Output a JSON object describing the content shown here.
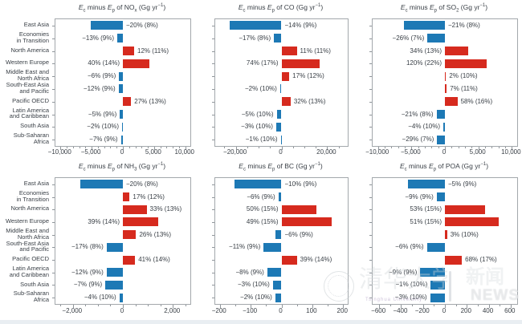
{
  "figure": {
    "title_words": {
      "e_symbol": "E",
      "ec_sub": "c",
      "minus_word": "minus",
      "ep_sub": "p",
      "of_word": "of",
      "unit_prefix": "(Gg yr",
      "unit_sup": "−1",
      "unit_suffix": ")"
    }
  },
  "colors": {
    "positive_bar": "#d62a1e",
    "negative_bar": "#1d79b5",
    "text": "#3a4047",
    "axis": "#a3a8ac",
    "tick": "#8f959a",
    "bottom_strip": "#e9eef2"
  },
  "regions": [
    {
      "name": "East Asia",
      "lines": [
        "East Asia"
      ]
    },
    {
      "name": "Economies in Transition",
      "lines": [
        "Economies",
        "in Transition"
      ]
    },
    {
      "name": "North America",
      "lines": [
        "North America"
      ]
    },
    {
      "name": "Western Europe",
      "lines": [
        "Western Europe"
      ]
    },
    {
      "name": "Middle East and North Africa",
      "lines": [
        "Middle East and",
        "North Africa"
      ]
    },
    {
      "name": "South-East Asia and Pacific",
      "lines": [
        "South-East Asia",
        "and Pacific"
      ]
    },
    {
      "name": "Pacific OECD",
      "lines": [
        "Pacific OECD"
      ]
    },
    {
      "name": "Latin America and Caribbean",
      "lines": [
        "Latin America",
        "and Caribbean"
      ]
    },
    {
      "name": "South Asia",
      "lines": [
        "South Asia"
      ]
    },
    {
      "name": "Sub-Saharan Africa",
      "lines": [
        "Sub-Saharan",
        "Africa"
      ]
    }
  ],
  "chart_data": [
    {
      "type": "bar",
      "id": "nox",
      "species": "NO",
      "species_sub": "x",
      "xlim": [
        -10800,
        10800
      ],
      "minor_step": 1000,
      "xticks": [
        {
          "v": -10000,
          "label": "−10,000"
        },
        {
          "v": -5000,
          "label": "−5,000"
        },
        {
          "v": 0,
          "label": "0"
        },
        {
          "v": 5000,
          "label": "5,000"
        },
        {
          "v": 10000,
          "label": "10,000"
        }
      ],
      "bars": [
        {
          "region": "East Asia",
          "value": -5100,
          "label": "−20% (8%)",
          "side": "after"
        },
        {
          "region": "Economies in Transition",
          "value": -900,
          "label": "−13% (9%)",
          "side": "before"
        },
        {
          "region": "North America",
          "value": 1800,
          "label": "12% (11%)",
          "side": "after"
        },
        {
          "region": "Western Europe",
          "value": 4200,
          "label": "40% (14%)",
          "side": "before"
        },
        {
          "region": "Middle East and North Africa",
          "value": -600,
          "label": "−6% (9%)",
          "side": "before"
        },
        {
          "region": "South-East Asia and Pacific",
          "value": -680,
          "label": "−12% (9%)",
          "side": "before"
        },
        {
          "region": "Pacific OECD",
          "value": 1320,
          "label": "27% (13%)",
          "side": "after"
        },
        {
          "region": "Latin America and Caribbean",
          "value": -480,
          "label": "−5% (9%)",
          "side": "before"
        },
        {
          "region": "South Asia",
          "value": -120,
          "label": "−2% (10%)",
          "side": "before"
        },
        {
          "region": "Sub-Saharan Africa",
          "value": -320,
          "label": "−7% (9%)",
          "side": "before"
        }
      ]
    },
    {
      "type": "bar",
      "id": "co",
      "species": "CO",
      "species_sub": "",
      "xlim": [
        -29000,
        29000
      ],
      "minor_step": 5000,
      "xticks": [
        {
          "v": -20000,
          "label": "−20,000"
        },
        {
          "v": 0,
          "label": "0"
        },
        {
          "v": 20000,
          "label": "20,000"
        }
      ],
      "bars": [
        {
          "region": "East Asia",
          "value": -22500,
          "label": "−14% (9%)",
          "side": "after"
        },
        {
          "region": "Economies in Transition",
          "value": -3300,
          "label": "−17% (8%)",
          "side": "before"
        },
        {
          "region": "North America",
          "value": 6700,
          "label": "11% (11%)",
          "side": "after"
        },
        {
          "region": "Western Europe",
          "value": 16700,
          "label": "74% (17%)",
          "side": "before"
        },
        {
          "region": "Middle East and North Africa",
          "value": 3400,
          "label": "17% (12%)",
          "side": "after"
        },
        {
          "region": "South-East Asia and Pacific",
          "value": -600,
          "label": "−2% (10%)",
          "side": "before"
        },
        {
          "region": "Pacific OECD",
          "value": 4000,
          "label": "32% (13%)",
          "side": "after"
        },
        {
          "region": "Latin America and Caribbean",
          "value": -2100,
          "label": "−5% (10%)",
          "side": "before"
        },
        {
          "region": "South Asia",
          "value": -2300,
          "label": "−3% (10%)",
          "side": "before"
        },
        {
          "region": "Sub-Saharan Africa",
          "value": -350,
          "label": "−1% (10%)",
          "side": "before"
        }
      ]
    },
    {
      "type": "bar",
      "id": "so2",
      "species": "SO",
      "species_sub": "2",
      "xlim": [
        -10800,
        10800
      ],
      "minor_step": 1000,
      "xticks": [
        {
          "v": -10000,
          "label": "−10,000"
        },
        {
          "v": -5000,
          "label": "−5,000"
        },
        {
          "v": 0,
          "label": "0"
        },
        {
          "v": 5000,
          "label": "5,000"
        },
        {
          "v": 10000,
          "label": "10,000"
        }
      ],
      "bars": [
        {
          "region": "East Asia",
          "value": -6100,
          "label": "−21% (8%)",
          "side": "after"
        },
        {
          "region": "Economies in Transition",
          "value": -2600,
          "label": "−26% (7%)",
          "side": "before"
        },
        {
          "region": "North America",
          "value": 3500,
          "label": "34% (13%)",
          "side": "before"
        },
        {
          "region": "Western Europe",
          "value": 6200,
          "label": "120% (22%)",
          "side": "before"
        },
        {
          "region": "Middle East and North Africa",
          "value": 170,
          "label": "2% (10%)",
          "side": "after"
        },
        {
          "region": "South-East Asia and Pacific",
          "value": 270,
          "label": "7% (11%)",
          "side": "after"
        },
        {
          "region": "Pacific OECD",
          "value": 1870,
          "label": "58% (16%)",
          "side": "after"
        },
        {
          "region": "Latin America and Caribbean",
          "value": -1260,
          "label": "−21% (8%)",
          "side": "before"
        },
        {
          "region": "South Asia",
          "value": -240,
          "label": "−4% (10%)",
          "side": "before"
        },
        {
          "region": "Sub-Saharan Africa",
          "value": -1160,
          "label": "−29% (7%)",
          "side": "before"
        }
      ]
    },
    {
      "type": "bar",
      "id": "nh3",
      "species": "NH",
      "species_sub": "3",
      "xlim": [
        -2700,
        2700
      ],
      "minor_step": 500,
      "xticks": [
        {
          "v": -2000,
          "label": "−2,000"
        },
        {
          "v": 0,
          "label": "0"
        },
        {
          "v": 2000,
          "label": "2,000"
        }
      ],
      "bars": [
        {
          "region": "East Asia",
          "value": -1700,
          "label": "−20% (8%)",
          "side": "after"
        },
        {
          "region": "Economies in Transition",
          "value": 270,
          "label": "17% (12%)",
          "side": "after"
        },
        {
          "region": "North America",
          "value": 950,
          "label": "33% (13%)",
          "side": "after"
        },
        {
          "region": "Western Europe",
          "value": 1430,
          "label": "39% (14%)",
          "side": "before"
        },
        {
          "region": "Middle East and North Africa",
          "value": 530,
          "label": "26% (13%)",
          "side": "after"
        },
        {
          "region": "South-East Asia and Pacific",
          "value": -650,
          "label": "−17% (8%)",
          "side": "before"
        },
        {
          "region": "Pacific OECD",
          "value": 490,
          "label": "41% (14%)",
          "side": "after"
        },
        {
          "region": "Latin America and Caribbean",
          "value": -650,
          "label": "−12% (9%)",
          "side": "before"
        },
        {
          "region": "South Asia",
          "value": -700,
          "label": "−7% (9%)",
          "side": "before"
        },
        {
          "region": "Sub-Saharan Africa",
          "value": -140,
          "label": "−4% (10%)",
          "side": "before"
        }
      ]
    },
    {
      "type": "bar",
      "id": "bc",
      "species": "BC",
      "species_sub": "",
      "xlim": [
        -215,
        215
      ],
      "minor_step": 50,
      "xticks": [
        {
          "v": -200,
          "label": "−200"
        },
        {
          "v": -100,
          "label": "−100"
        },
        {
          "v": 0,
          "label": "0"
        },
        {
          "v": 100,
          "label": "100"
        },
        {
          "v": 200,
          "label": "200"
        }
      ],
      "bars": [
        {
          "region": "East Asia",
          "value": -153,
          "label": "−10% (9%)",
          "side": "after"
        },
        {
          "region": "Economies in Transition",
          "value": -10,
          "label": "−6% (9%)",
          "side": "before"
        },
        {
          "region": "North America",
          "value": 114,
          "label": "50% (15%)",
          "side": "before"
        },
        {
          "region": "Western Europe",
          "value": 162,
          "label": "49% (15%)",
          "side": "before"
        },
        {
          "region": "Middle East and North Africa",
          "value": -20,
          "label": "−6% (9%)",
          "side": "after"
        },
        {
          "region": "South-East Asia and Pacific",
          "value": -58,
          "label": "−11% (9%)",
          "side": "before"
        },
        {
          "region": "Pacific OECD",
          "value": 50,
          "label": "39% (14%)",
          "side": "after"
        },
        {
          "region": "Latin America and Caribbean",
          "value": -46,
          "label": "−8% (9%)",
          "side": "before"
        },
        {
          "region": "South Asia",
          "value": -28,
          "label": "−3% (10%)",
          "side": "before"
        },
        {
          "region": "Sub-Saharan Africa",
          "value": -20,
          "label": "−2% (10%)",
          "side": "before"
        }
      ]
    },
    {
      "type": "bar",
      "id": "poa",
      "species": "POA",
      "species_sub": "",
      "xlim": [
        -660,
        660
      ],
      "minor_step": 100,
      "xticks": [
        {
          "v": -600,
          "label": "−600"
        },
        {
          "v": -400,
          "label": "−400"
        },
        {
          "v": -200,
          "label": "−200"
        },
        {
          "v": 0,
          "label": "0"
        },
        {
          "v": 200,
          "label": "200"
        },
        {
          "v": 400,
          "label": "400"
        },
        {
          "v": 600,
          "label": "600"
        }
      ],
      "bars": [
        {
          "region": "East Asia",
          "value": -340,
          "label": "−5% (9%)",
          "side": "after"
        },
        {
          "region": "Economies in Transition",
          "value": -75,
          "label": "−9% (9%)",
          "side": "before"
        },
        {
          "region": "North America",
          "value": 370,
          "label": "53% (15%)",
          "side": "before"
        },
        {
          "region": "Western Europe",
          "value": 490,
          "label": "51% (15%)",
          "side": "before"
        },
        {
          "region": "Middle East and North Africa",
          "value": 20,
          "label": "3% (10%)",
          "side": "after"
        },
        {
          "region": "South-East Asia and Pacific",
          "value": -165,
          "label": "−6% (9%)",
          "side": "before"
        },
        {
          "region": "Pacific OECD",
          "value": 155,
          "label": "68% (17%)",
          "side": "after"
        },
        {
          "region": "Latin America and Caribbean",
          "value": -225,
          "label": "−9% (9%)",
          "side": "before"
        },
        {
          "region": "South Asia",
          "value": -130,
          "label": "−1% (10%)",
          "side": "before"
        },
        {
          "region": "Sub-Saharan Africa",
          "value": -135,
          "label": "−3% (10%)",
          "side": "before"
        }
      ]
    }
  ],
  "watermark": {
    "cjk_main": "清华大学",
    "latin_sub": "Tsinghua University",
    "divider": "|",
    "cjk_news": "新闻",
    "latin_news": "NEWS"
  }
}
